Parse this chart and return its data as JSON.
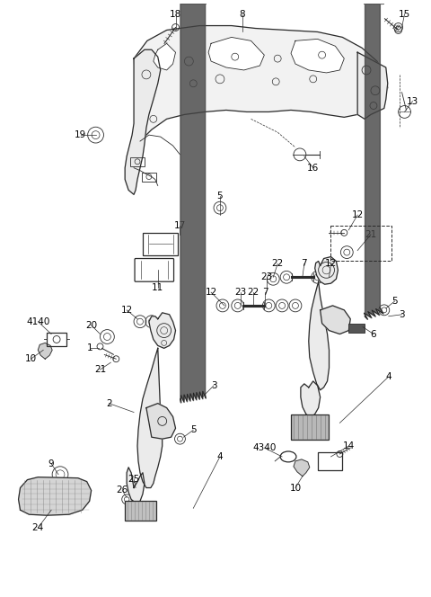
{
  "bg_color": "#ffffff",
  "line_color": "#2a2a2a",
  "text_color": "#000000",
  "fig_width": 4.8,
  "fig_height": 6.64,
  "dpi": 100
}
